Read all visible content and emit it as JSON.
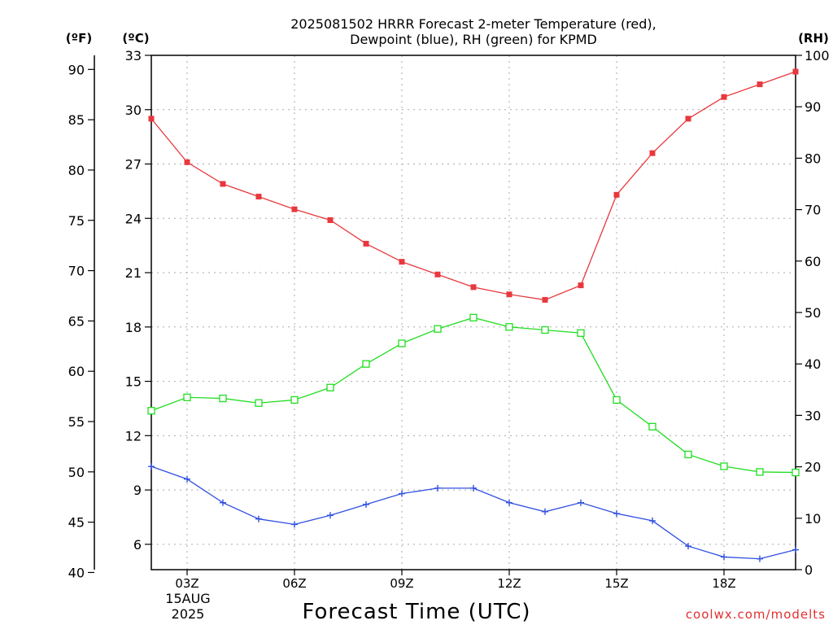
{
  "chart_data": {
    "type": "line",
    "title": "2025081502 HRRR Forecast 2-meter Temperature (red),",
    "subtitle": "Dewpoint (blue), RH (green) for KPMD",
    "xlabel": "Forecast Time (UTC)",
    "left_outer_axis_label": "(ºF)",
    "left_inner_axis_label": "(ºC)",
    "right_axis_label": "(RH)",
    "date_line1": "15AUG",
    "date_line2": "2025",
    "credit": "coolwx.com/modelts",
    "x": [
      "02Z",
      "03Z",
      "04Z",
      "05Z",
      "06Z",
      "07Z",
      "08Z",
      "09Z",
      "10Z",
      "11Z",
      "12Z",
      "13Z",
      "14Z",
      "15Z",
      "16Z",
      "17Z",
      "18Z",
      "19Z",
      "20Z"
    ],
    "x_tick_labels": [
      "03Z",
      "06Z",
      "09Z",
      "12Z",
      "15Z",
      "18Z"
    ],
    "y_celsius_ticks": [
      "33",
      "30",
      "27",
      "24",
      "21",
      "18",
      "15",
      "12",
      "9",
      "6"
    ],
    "y_fahrenheit_ticks": [
      "90",
      "85",
      "80",
      "75",
      "70",
      "65",
      "60",
      "55",
      "50",
      "45",
      "40"
    ],
    "y_rh_ticks": [
      "100",
      "90",
      "80",
      "70",
      "60",
      "50",
      "40",
      "30",
      "20",
      "10",
      "0"
    ],
    "y_celsius_range": [
      4.6,
      33.0
    ],
    "y_rh_range": [
      0,
      100
    ],
    "grid": true,
    "series": [
      {
        "name": "Temperature (red)",
        "axis": "celsius",
        "color": "#e8383d",
        "marker": "filled-square",
        "values": [
          29.5,
          27.1,
          25.9,
          25.2,
          24.5,
          23.9,
          22.6,
          21.6,
          20.9,
          20.2,
          19.8,
          19.5,
          20.3,
          25.3,
          27.6,
          29.5,
          30.7,
          31.4,
          32.1
        ]
      },
      {
        "name": "Dewpoint (blue)",
        "axis": "celsius",
        "color": "#3050e0",
        "marker": "plus",
        "values": [
          10.3,
          9.6,
          8.3,
          7.4,
          7.1,
          7.6,
          8.2,
          8.8,
          9.1,
          9.1,
          8.3,
          7.8,
          8.3,
          7.7,
          7.3,
          5.9,
          5.3,
          5.2,
          5.7
        ]
      },
      {
        "name": "RH (green)",
        "axis": "rh",
        "color": "#22dd22",
        "marker": "open-square",
        "values": [
          30.9,
          33.5,
          33.3,
          32.4,
          33.0,
          35.4,
          40.0,
          44.0,
          46.8,
          49.0,
          47.2,
          46.6,
          46.0,
          33.0,
          27.8,
          22.4,
          20.1,
          19.0,
          18.9
        ]
      }
    ]
  }
}
